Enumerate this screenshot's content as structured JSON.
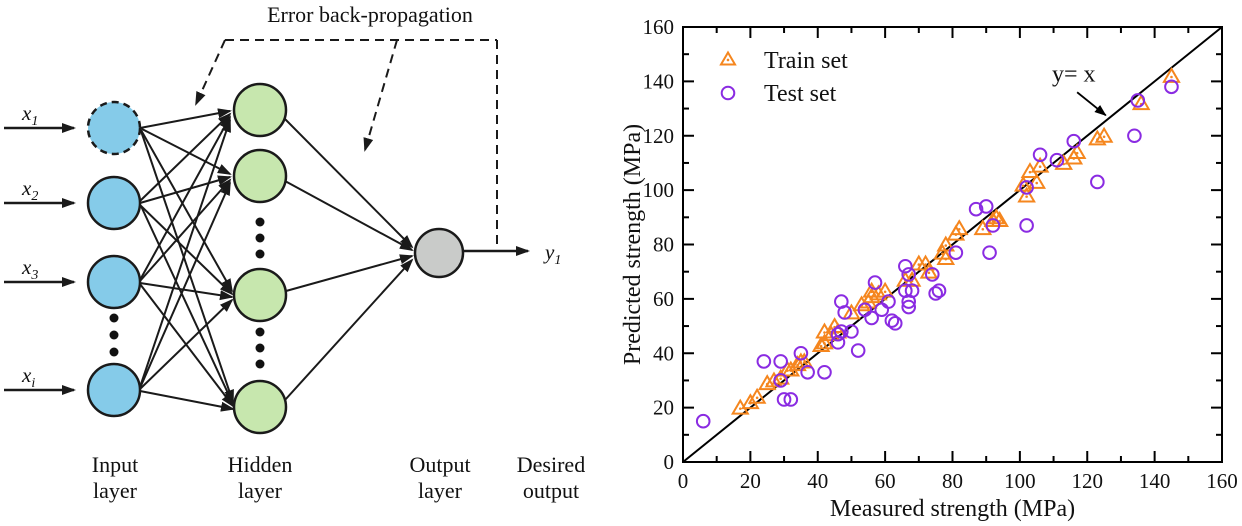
{
  "diagram": {
    "title": "Error back-propagation",
    "inputs": [
      {
        "var": "x",
        "sub": "1"
      },
      {
        "var": "x",
        "sub": "2"
      },
      {
        "var": "x",
        "sub": "3"
      },
      {
        "var": "x",
        "sub": "i"
      }
    ],
    "output_var": {
      "var": "y",
      "sub": "1"
    },
    "layer_labels": {
      "input_line1": "Input",
      "input_line2": "layer",
      "hidden_line1": "Hidden",
      "hidden_line2": "layer",
      "output_line1": "Output",
      "output_line2": "layer",
      "desired_line1": "Desired",
      "desired_line2": "output"
    },
    "colors": {
      "input_node": "#85CBE9",
      "hidden_node": "#C7E7AE",
      "output_node": "#C9CBC9",
      "edge": "#1a1a1a"
    }
  },
  "chart_data": {
    "type": "scatter",
    "title": "",
    "xlabel": "Measured strength (MPa)",
    "ylabel": "Predicted strength (MPa)",
    "xlim": [
      0,
      160
    ],
    "ylim": [
      0,
      160
    ],
    "major_step": 20,
    "minor_step": 10,
    "grid": false,
    "legend_position": "top-left",
    "reference_line": {
      "from": [
        0,
        0
      ],
      "to": [
        160,
        160
      ]
    },
    "annotation": {
      "text": "y= x",
      "text_xy": [
        116,
        140
      ],
      "arrow_from": [
        117,
        136
      ],
      "arrow_to": [
        125.5,
        127.5
      ]
    },
    "series": [
      {
        "name": "Train set",
        "marker": "triangle-open-dot",
        "color": "#F5861E",
        "points": [
          [
            17,
            20
          ],
          [
            20,
            22
          ],
          [
            22,
            24
          ],
          [
            25,
            29
          ],
          [
            27,
            30
          ],
          [
            29,
            31
          ],
          [
            31,
            34
          ],
          [
            32,
            34
          ],
          [
            34,
            36
          ],
          [
            35,
            37
          ],
          [
            36,
            37
          ],
          [
            41,
            43
          ],
          [
            42,
            44
          ],
          [
            42,
            48
          ],
          [
            44,
            47
          ],
          [
            45,
            50
          ],
          [
            46,
            48
          ],
          [
            50,
            55
          ],
          [
            53,
            58
          ],
          [
            55,
            59
          ],
          [
            56,
            61
          ],
          [
            56,
            63
          ],
          [
            58,
            62
          ],
          [
            60,
            63
          ],
          [
            66,
            67
          ],
          [
            68,
            67
          ],
          [
            70,
            73
          ],
          [
            72,
            73
          ],
          [
            73,
            70
          ],
          [
            77,
            77
          ],
          [
            78,
            75
          ],
          [
            78,
            80
          ],
          [
            81,
            84
          ],
          [
            82,
            86
          ],
          [
            89,
            86
          ],
          [
            92,
            89
          ],
          [
            93,
            90
          ],
          [
            94,
            89
          ],
          [
            101,
            102
          ],
          [
            102,
            98
          ],
          [
            103,
            107
          ],
          [
            105,
            103
          ],
          [
            106,
            109
          ],
          [
            113,
            110
          ],
          [
            116,
            112
          ],
          [
            117,
            114
          ],
          [
            123,
            119
          ],
          [
            125,
            120
          ],
          [
            136,
            132
          ],
          [
            145,
            142
          ]
        ]
      },
      {
        "name": "Test set",
        "marker": "circle-open",
        "color": "#8A2BE2",
        "points": [
          [
            6,
            15
          ],
          [
            24,
            37
          ],
          [
            29,
            30
          ],
          [
            29,
            37
          ],
          [
            30,
            23
          ],
          [
            32,
            23
          ],
          [
            35,
            40
          ],
          [
            37,
            33
          ],
          [
            42,
            33
          ],
          [
            46,
            44
          ],
          [
            46,
            47
          ],
          [
            47,
            48
          ],
          [
            47,
            59
          ],
          [
            48,
            55
          ],
          [
            50,
            48
          ],
          [
            52,
            41
          ],
          [
            54,
            56
          ],
          [
            56,
            53
          ],
          [
            57,
            66
          ],
          [
            59,
            56
          ],
          [
            61,
            59
          ],
          [
            62,
            52
          ],
          [
            63,
            51
          ],
          [
            66,
            63
          ],
          [
            66,
            72
          ],
          [
            67,
            57
          ],
          [
            67,
            59
          ],
          [
            67,
            69
          ],
          [
            68,
            63
          ],
          [
            74,
            69
          ],
          [
            75,
            62
          ],
          [
            76,
            63
          ],
          [
            81,
            77
          ],
          [
            87,
            93
          ],
          [
            90,
            94
          ],
          [
            91,
            77
          ],
          [
            92,
            87
          ],
          [
            102,
            87
          ],
          [
            102,
            101
          ],
          [
            106,
            113
          ],
          [
            111,
            111
          ],
          [
            116,
            118
          ],
          [
            123,
            103
          ],
          [
            134,
            120
          ],
          [
            135,
            133
          ],
          [
            145,
            138
          ]
        ]
      }
    ]
  }
}
